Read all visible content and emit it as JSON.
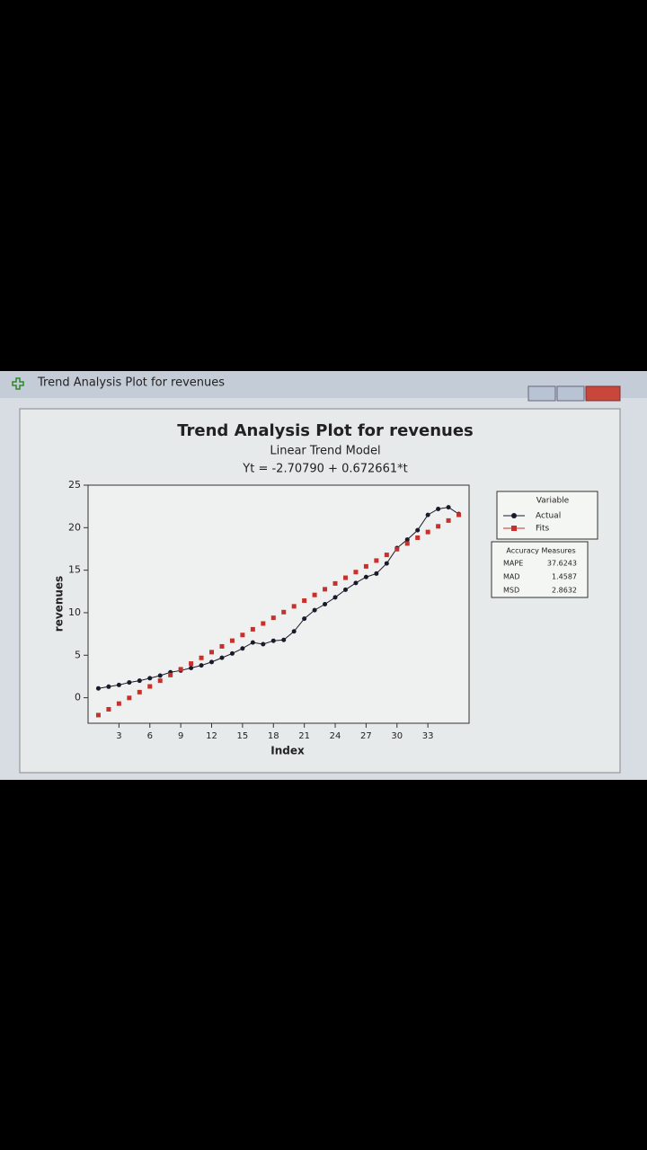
{
  "window_title": "Trend Analysis Plot for revenues",
  "chart_data": {
    "type": "line",
    "title": "Trend Analysis Plot for revenues",
    "subtitle": "Linear Trend Model",
    "equation": "Yt = -2.70790 + 0.672661*t",
    "x_label": "Index",
    "y_label": "revenues",
    "x": [
      1,
      2,
      3,
      4,
      5,
      6,
      7,
      8,
      9,
      10,
      11,
      12,
      13,
      14,
      15,
      16,
      17,
      18,
      19,
      20,
      21,
      22,
      23,
      24,
      25,
      26,
      27,
      28,
      29,
      30,
      31,
      32,
      33,
      34,
      35,
      36
    ],
    "series": [
      {
        "name": "Actual",
        "color": "#1a1a2a",
        "marker": "circle",
        "values": [
          1.1,
          1.3,
          1.5,
          1.8,
          2.0,
          2.3,
          2.6,
          3.0,
          3.2,
          3.5,
          3.8,
          4.2,
          4.7,
          5.2,
          5.8,
          6.5,
          6.3,
          6.7,
          6.8,
          7.8,
          9.3,
          10.3,
          11.0,
          11.8,
          12.7,
          13.5,
          14.2,
          14.6,
          15.8,
          17.6,
          18.6,
          19.7,
          21.5,
          22.2,
          22.4,
          21.6
        ]
      },
      {
        "name": "Fits",
        "color": "#c8302c",
        "marker": "square",
        "values": [
          -2.04,
          -1.36,
          -0.69,
          -0.02,
          0.66,
          1.33,
          2.0,
          2.67,
          3.35,
          4.02,
          4.69,
          5.36,
          6.04,
          6.71,
          7.38,
          8.05,
          8.73,
          9.4,
          10.07,
          10.75,
          11.42,
          12.09,
          12.76,
          13.44,
          14.11,
          14.78,
          15.45,
          16.13,
          16.8,
          17.47,
          18.14,
          18.82,
          19.49,
          20.16,
          20.84,
          21.51
        ]
      }
    ],
    "legend_title": "Variable",
    "xlim": [
      0,
      37
    ],
    "ylim": [
      -3,
      25
    ],
    "xticks": [
      3,
      6,
      9,
      12,
      15,
      18,
      21,
      24,
      27,
      30,
      33
    ],
    "yticks": [
      0,
      5,
      10,
      15,
      20,
      25
    ],
    "grid": false,
    "accuracy": {
      "title": "Accuracy Measures",
      "rows": [
        {
          "label": "MAPE",
          "value": 37.6243
        },
        {
          "label": "MAD",
          "value": 1.4587
        },
        {
          "label": "MSD",
          "value": 2.8632
        }
      ]
    }
  }
}
